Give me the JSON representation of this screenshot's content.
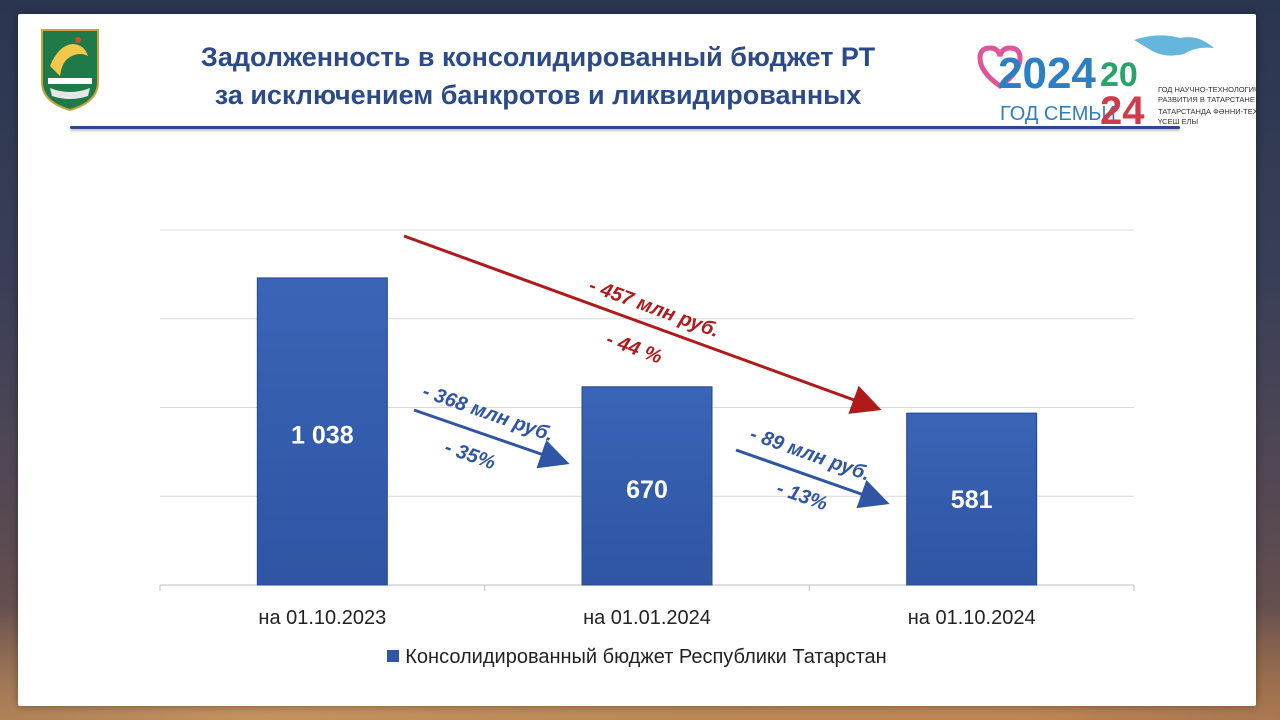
{
  "header": {
    "title_line1": "Задолженность в консолидированный бюджет РТ",
    "title_line2": "за исключением банкротов и ликвидированных"
  },
  "logo": {
    "year_big": "2024",
    "family_text": "ГОД СЕМЬИ",
    "year_split_top": "20",
    "year_split_bottom": "24",
    "line1": "ГОД НАУЧНО-ТЕХНОЛОГИЧЕСКОГО",
    "line2": "РАЗВИТИЯ В ТАТАРСТАНЕ",
    "line3": "ТАТАРСТАНДА ФӘННИ-ТЕХНОЛОГИК",
    "line4": "ҮСЕШ ЕЛЫ"
  },
  "colors": {
    "bar": "#2f55a4",
    "title": "#2c4a8a",
    "arrow_blue": "#2f55a4",
    "arrow_red": "#b01a1a"
  },
  "chart_data": {
    "type": "bar",
    "categories": [
      "на 01.10.2023",
      "на 01.01.2024",
      "на 01.10.2024"
    ],
    "series": [
      {
        "name": "Консолидированный бюджет Республики Татарстан",
        "values": [
          1038,
          670,
          581
        ],
        "labels": [
          "1 038",
          "670",
          "581"
        ]
      }
    ],
    "ylim": [
      0,
      1200
    ],
    "grid": true,
    "legend": "bottom",
    "annotations": [
      {
        "from": 0,
        "to": 1,
        "color": "blue",
        "amount": "- 368 млн руб.",
        "percent": "- 35%"
      },
      {
        "from": 1,
        "to": 2,
        "color": "blue",
        "amount": "- 89 млн руб.",
        "percent": "- 13%"
      },
      {
        "from": 0,
        "to": 2,
        "color": "red",
        "amount": "- 457 млн руб.",
        "percent": "- 44 %"
      }
    ]
  }
}
